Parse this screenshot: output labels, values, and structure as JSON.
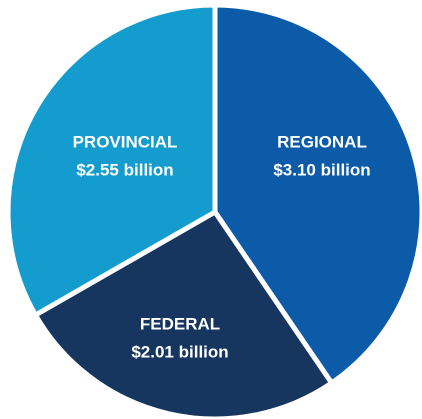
{
  "chart_data": {
    "type": "pie",
    "categories": [
      "REGIONAL",
      "FEDERAL",
      "PROVINCIAL"
    ],
    "values": [
      3.1,
      2.01,
      2.55
    ],
    "value_labels": [
      "$3.10 billion",
      "$2.01 billion",
      "$2.55 billion"
    ],
    "colors": [
      "#0b5ba8",
      "#16365f",
      "#149ccf"
    ]
  }
}
